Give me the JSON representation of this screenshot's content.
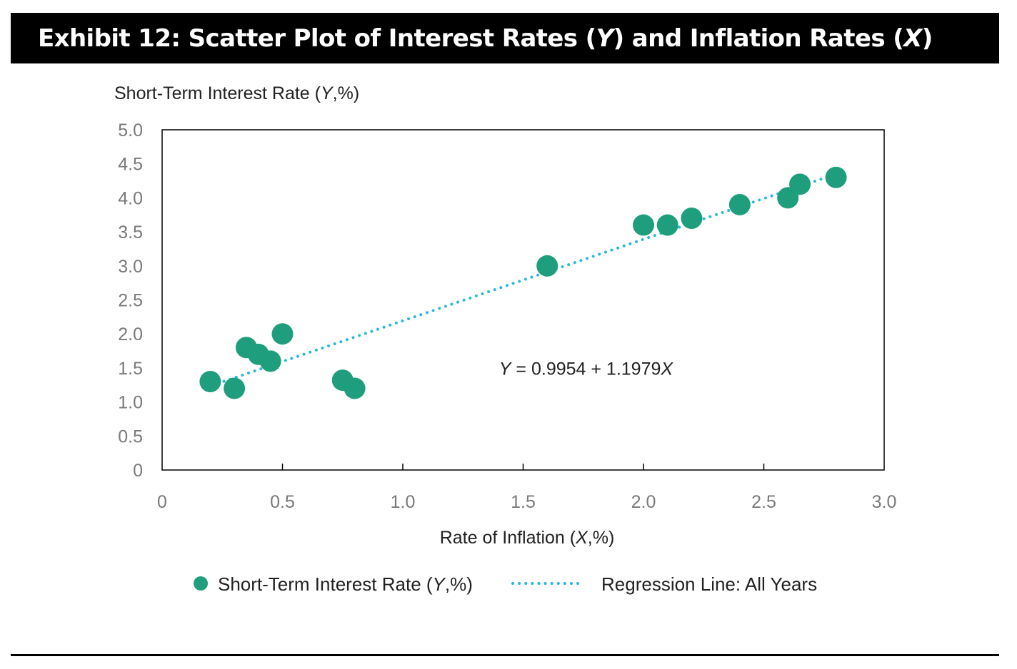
{
  "header": {
    "title_prefix": "Exhibit 12: Scatter Plot of Interest Rates (",
    "title_y": "Y",
    "title_mid": ") and Inflation Rates (",
    "title_x": "X",
    "title_suffix": ")"
  },
  "chart_data": {
    "type": "scatter",
    "ylabel_prefix": "Short-Term Interest Rate (",
    "ylabel_var": "Y",
    "ylabel_suffix": ",%)",
    "xlabel_prefix": "Rate of Inflation (",
    "xlabel_var": "X",
    "xlabel_suffix": ",%)",
    "xlim": [
      0,
      3.0
    ],
    "ylim": [
      0,
      5.0
    ],
    "x_ticks": [
      "0",
      "0.5",
      "1.0",
      "1.5",
      "2.0",
      "2.5",
      "3.0"
    ],
    "x_tick_values": [
      0,
      0.5,
      1.0,
      1.5,
      2.0,
      2.5,
      3.0
    ],
    "y_ticks": [
      "0",
      "0.5",
      "1.0",
      "1.5",
      "2.0",
      "2.5",
      "3.0",
      "3.5",
      "4.0",
      "4.5",
      "5.0"
    ],
    "y_tick_values": [
      0,
      0.5,
      1.0,
      1.5,
      2.0,
      2.5,
      3.0,
      3.5,
      4.0,
      4.5,
      5.0
    ],
    "grid": false,
    "series": [
      {
        "name_prefix": "Short-Term Interest Rate (",
        "name_var": "Y",
        "name_suffix": ",%)",
        "color": "#1f9e7d",
        "points": [
          {
            "x": 0.2,
            "y": 1.3
          },
          {
            "x": 0.3,
            "y": 1.2
          },
          {
            "x": 0.35,
            "y": 1.8
          },
          {
            "x": 0.4,
            "y": 1.7
          },
          {
            "x": 0.45,
            "y": 1.6
          },
          {
            "x": 0.5,
            "y": 2.0
          },
          {
            "x": 0.75,
            "y": 1.32
          },
          {
            "x": 0.8,
            "y": 1.2
          },
          {
            "x": 1.6,
            "y": 3.0
          },
          {
            "x": 2.0,
            "y": 3.6
          },
          {
            "x": 2.1,
            "y": 3.6
          },
          {
            "x": 2.2,
            "y": 3.7
          },
          {
            "x": 2.4,
            "y": 3.9
          },
          {
            "x": 2.6,
            "y": 4.0
          },
          {
            "x": 2.65,
            "y": 4.2
          },
          {
            "x": 2.8,
            "y": 4.3
          }
        ]
      }
    ],
    "regression": {
      "name": "Regression Line: All Years",
      "color": "#2bb8d9",
      "intercept": 0.9954,
      "slope": 1.1979,
      "x_range": [
        0.18,
        2.8
      ],
      "equation_var_y": "Y",
      "equation_body": " = 0.9954 + 1.1979",
      "equation_var_x": "X",
      "equation_pos": {
        "x": 1.4,
        "y": 1.4
      }
    },
    "legend_placement": "bottom-center"
  }
}
